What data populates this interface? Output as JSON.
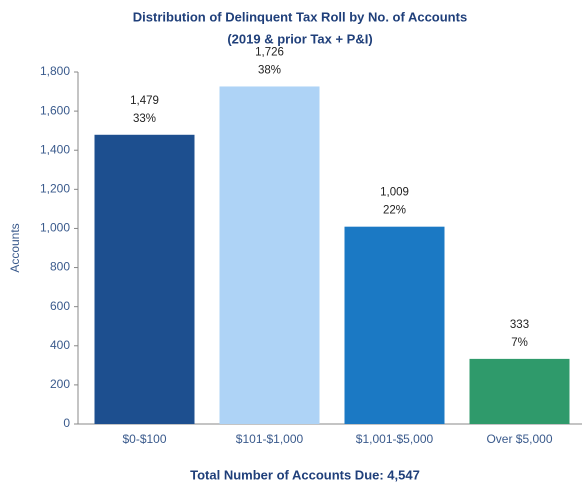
{
  "chart_data": {
    "type": "bar",
    "title": "Distribution of Delinquent Tax Roll by No. of Accounts",
    "subtitle": "(2019 & prior Tax + P&I)",
    "y_label": "Accounts",
    "annotation": "Total Number of Accounts Due: 4,547",
    "categories": [
      "$0-$100",
      "$101-$1,000",
      "$1,001-$5,000",
      "Over $5,000"
    ],
    "values": [
      1479,
      1726,
      1009,
      333
    ],
    "value_labels": [
      "1,479",
      "1,726",
      "1,009",
      "333"
    ],
    "percent_labels": [
      "33%",
      "38%",
      "22%",
      "7%"
    ],
    "colors": [
      "#1d4f8f",
      "#aed3f6",
      "#1b79c4",
      "#2f9a6b"
    ],
    "ylim": [
      0,
      1800
    ],
    "yticks": [
      0,
      200,
      400,
      600,
      800,
      {
        "value": 1000,
        "label": "1,000"
      },
      {
        "value": 1200,
        "label": "1,200"
      },
      {
        "value": 1400,
        "label": "1,400"
      },
      {
        "value": 1600,
        "label": "1,600"
      },
      {
        "value": 1800,
        "label": "1,800"
      }
    ],
    "grid": false
  }
}
